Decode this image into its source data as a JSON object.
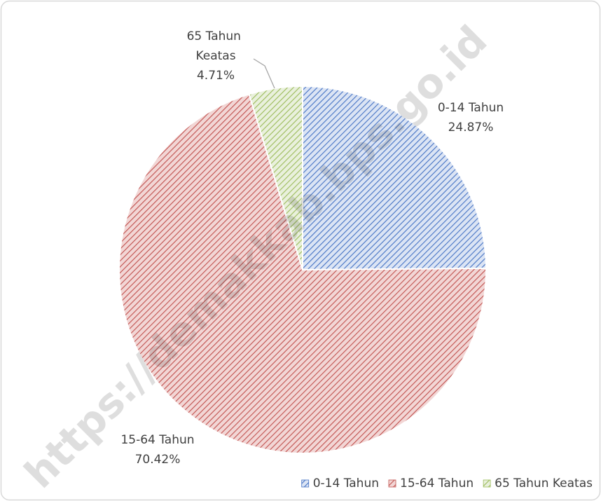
{
  "chart_data": {
    "type": "pie",
    "categories": [
      "0-14 Tahun",
      "15-64 Tahun",
      "65 Tahun Keatas"
    ],
    "values": [
      24.87,
      70.42,
      4.71
    ],
    "value_labels": [
      "24.87%",
      "70.42%",
      "4.71%"
    ],
    "colors": [
      "#4472c4",
      "#c0504d",
      "#9bbb59"
    ],
    "legend": "bottom-right",
    "watermark": "https://demakkab.bps.go.id"
  }
}
